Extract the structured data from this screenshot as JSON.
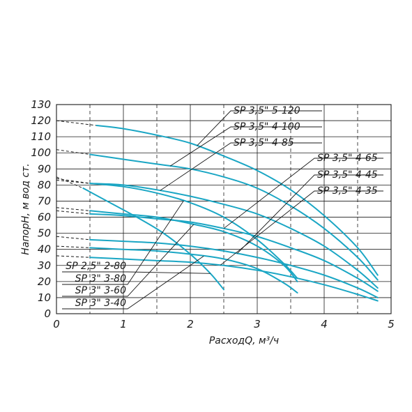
{
  "chart_data": {
    "type": "line",
    "title": "",
    "xlabel": "РасходQ, м³/ч",
    "ylabel": "НапорH, м вод ст.",
    "xlim": [
      0,
      5
    ],
    "ylim": [
      0,
      130
    ],
    "xticks": [
      0,
      1,
      2,
      3,
      4,
      5
    ],
    "yticks": [
      0,
      10,
      20,
      30,
      40,
      50,
      60,
      70,
      80,
      90,
      100,
      110,
      120,
      130
    ],
    "grid": true,
    "curve_color": "#1aa6c4",
    "series": [
      {
        "name": "SP 3,5\" 5-120",
        "dashed": [
          [
            0,
            120
          ],
          [
            0.6,
            117
          ]
        ],
        "x": [
          0.6,
          1,
          1.5,
          2,
          2.5,
          3,
          3.5,
          4,
          4.5,
          4.8
        ],
        "y": [
          117,
          115,
          111,
          106,
          98,
          89,
          77,
          61,
          41,
          24
        ],
        "label_side": "right",
        "label_row": 0
      },
      {
        "name": "SP 3,5\" 4-100",
        "dashed": [
          [
            0,
            102
          ],
          [
            0.5,
            99
          ]
        ],
        "x": [
          0.5,
          1,
          1.5,
          2,
          2.5,
          3,
          3.5,
          4,
          4.5,
          4.8
        ],
        "y": [
          99,
          96,
          93,
          90,
          85,
          78,
          67,
          53,
          35,
          21
        ],
        "label_side": "right",
        "label_row": 1
      },
      {
        "name": "SP 3,5\" 4-85",
        "dashed": [
          [
            0,
            84
          ],
          [
            0.5,
            81
          ]
        ],
        "x": [
          0.5,
          1,
          1.5,
          2,
          2.5,
          3,
          3.5,
          4,
          4.5,
          4.8
        ],
        "y": [
          81,
          80,
          77,
          73,
          68,
          62,
          53,
          42,
          27,
          16
        ],
        "label_side": "right",
        "label_row": 2
      },
      {
        "name": "SP 3,5\" 4-65",
        "dashed": [
          [
            0,
            64
          ],
          [
            0.5,
            62
          ]
        ],
        "x": [
          0.5,
          1,
          1.5,
          2,
          2.5,
          3,
          3.5,
          4,
          4.5,
          4.8
        ],
        "y": [
          62,
          61,
          59,
          57,
          53,
          48,
          41,
          33,
          22,
          14
        ],
        "label_side": "right",
        "label_row": 3
      },
      {
        "name": "SP 3,5\" 4-45",
        "dashed": [
          [
            0,
            48
          ],
          [
            0.5,
            46
          ]
        ],
        "x": [
          0.5,
          1,
          1.5,
          2,
          2.5,
          3,
          3.5,
          4,
          4.5,
          4.8
        ],
        "y": [
          46,
          45,
          44,
          42,
          39,
          35,
          30,
          24,
          16,
          10
        ],
        "label_side": "right",
        "label_row": 4
      },
      {
        "name": "SP 3,5\" 4-35",
        "dashed": [
          [
            0,
            36
          ],
          [
            0.5,
            35
          ]
        ],
        "x": [
          0.5,
          1,
          1.5,
          2,
          2.5,
          3,
          3.5,
          4,
          4.5,
          4.8
        ],
        "y": [
          35,
          34,
          33,
          32,
          30,
          27,
          23,
          18,
          12,
          8
        ],
        "label_side": "right",
        "label_row": 5
      },
      {
        "name": "SP 2,5\" 2-80",
        "dashed": [
          [
            0,
            85
          ],
          [
            0.4,
            78
          ]
        ],
        "x": [
          0.4,
          0.8,
          1.2,
          1.6,
          2,
          2.3,
          2.5
        ],
        "y": [
          78,
          69,
          60,
          50,
          37,
          25,
          15
        ],
        "label_side": "left",
        "label_row": 0
      },
      {
        "name": "SP 3\" 3-80",
        "dashed": [
          [
            0,
            83
          ],
          [
            0.5,
            81
          ]
        ],
        "x": [
          0.5,
          1,
          1.5,
          2,
          2.5,
          3,
          3.4,
          3.6
        ],
        "y": [
          81,
          79,
          75,
          69,
          60,
          46,
          31,
          22
        ],
        "label_side": "left",
        "label_row": 1
      },
      {
        "name": "SP 3\" 3-60",
        "dashed": [
          [
            0,
            66
          ],
          [
            0.5,
            64
          ]
        ],
        "x": [
          0.5,
          1,
          1.5,
          2,
          2.5,
          3,
          3.4,
          3.6
        ],
        "y": [
          64,
          62,
          60,
          56,
          51,
          42,
          30,
          20
        ],
        "label_side": "left",
        "label_row": 2
      },
      {
        "name": "SP 3\" 3-40",
        "dashed": [
          [
            0,
            42
          ],
          [
            0.5,
            41
          ]
        ],
        "x": [
          0.5,
          1,
          1.5,
          2,
          2.5,
          3,
          3.4,
          3.6
        ],
        "y": [
          41,
          40,
          39,
          37,
          34,
          28,
          19,
          13
        ],
        "label_side": "left",
        "label_row": 3
      }
    ]
  }
}
